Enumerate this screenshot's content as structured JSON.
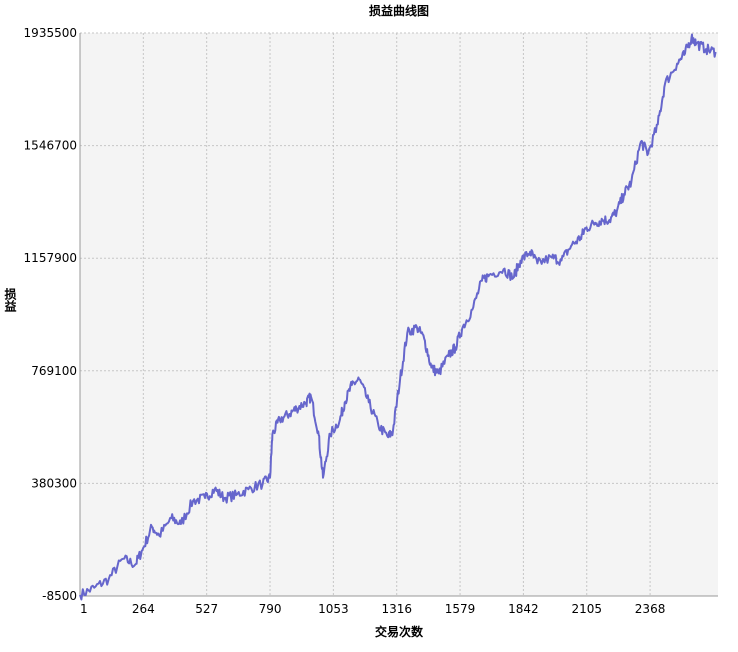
{
  "chart_data": {
    "type": "line",
    "title": "损益曲线图",
    "xlabel": "交易次数",
    "ylabel": "损益",
    "xlim": [
      1,
      2650
    ],
    "ylim": [
      -8500,
      1935500
    ],
    "x_ticks": [
      "1",
      "264",
      "527",
      "790",
      "1053",
      "1316",
      "1579",
      "1842",
      "2105",
      "2368"
    ],
    "y_ticks": [
      "-8500",
      "380300",
      "769100",
      "1157900",
      "1546700",
      "1935500"
    ],
    "grid": true,
    "series": [
      {
        "color": "#6666cc",
        "x": [
          1,
          60,
          120,
          180,
          230,
          260,
          300,
          330,
          380,
          420,
          470,
          520,
          560,
          600,
          650,
          700,
          760,
          790,
          800,
          830,
          870,
          900,
          940,
          960,
          990,
          1010,
          1040,
          1080,
          1100,
          1130,
          1160,
          1200,
          1240,
          1280,
          1300,
          1330,
          1360,
          1400,
          1430,
          1460,
          1490,
          1530,
          1560,
          1590,
          1630,
          1670,
          1700,
          1760,
          1800,
          1830,
          1870,
          1900,
          1960,
          2000,
          2040,
          2080,
          2100,
          2140,
          2170,
          2200,
          2230,
          2260,
          2290,
          2330,
          2360,
          2400,
          2430,
          2480,
          2510,
          2540,
          2560,
          2600,
          2640
        ],
        "y": [
          -5000,
          20000,
          50000,
          120000,
          100000,
          150000,
          230000,
          200000,
          260000,
          240000,
          320000,
          330000,
          360000,
          330000,
          340000,
          360000,
          380000,
          400000,
          550000,
          600000,
          620000,
          640000,
          660000,
          680000,
          560000,
          400000,
          550000,
          600000,
          660000,
          720000,
          740000,
          660000,
          580000,
          540000,
          560000,
          740000,
          900000,
          920000,
          880000,
          780000,
          760000,
          820000,
          850000,
          920000,
          980000,
          1080000,
          1100000,
          1120000,
          1090000,
          1150000,
          1180000,
          1140000,
          1160000,
          1150000,
          1200000,
          1230000,
          1260000,
          1280000,
          1290000,
          1290000,
          1320000,
          1380000,
          1420000,
          1560000,
          1520000,
          1620000,
          1760000,
          1830000,
          1860000,
          1920000,
          1900000,
          1880000,
          1870000
        ]
      }
    ]
  }
}
